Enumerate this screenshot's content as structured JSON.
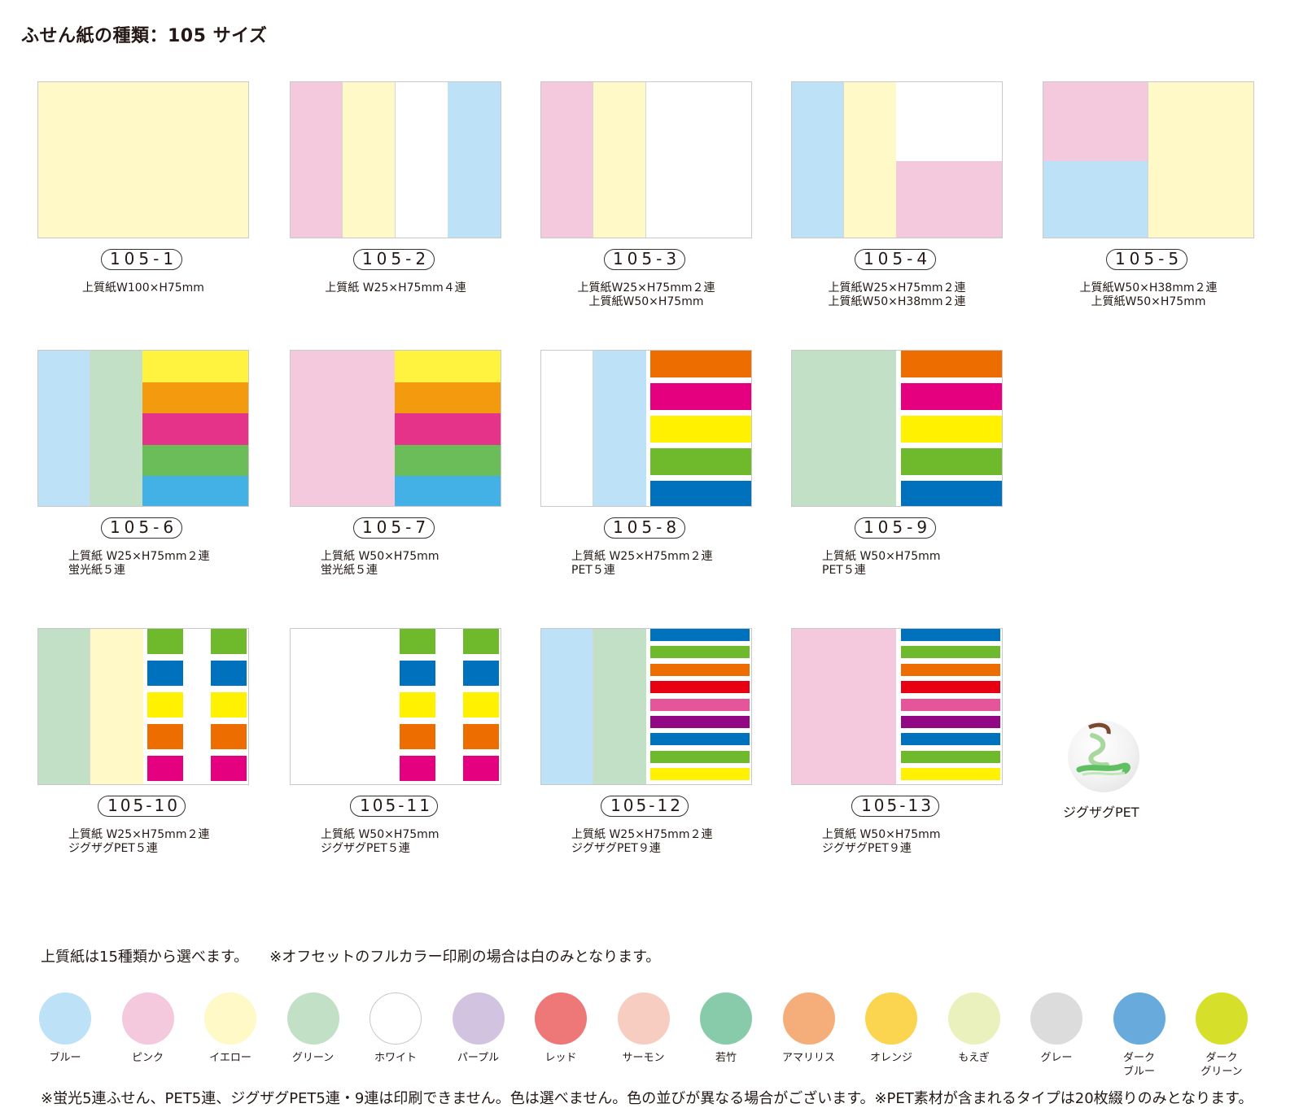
{
  "page": {
    "title": "ふせん紙の種類：105 サイズ"
  },
  "colors": {
    "blue": "#bde1f6",
    "pink": "#f4c9de",
    "yellow": "#fef9c6",
    "white": "#ffffff",
    "green": "#c1e0c5",
    "fl_yellow": "#fff33f",
    "fl_orange": "#f39a0f",
    "fl_pink": "#e6338a",
    "fl_green": "#6bbd59",
    "fl_blue": "#44b1e6",
    "pet_orange": "#ed6d00",
    "pet_magenta": "#e4007f",
    "pet_yellow": "#fff100",
    "pet_green": "#6fba2c",
    "pet_blue": "#0071bc",
    "pet_red": "#e60012",
    "pet_pink": "#e5559a",
    "pet_purple": "#920783"
  },
  "products": [
    {
      "code": "105-1",
      "lines": [
        "上質紙W100×H75mm"
      ]
    },
    {
      "code": "105-2",
      "lines": [
        "上質紙 W25×H75mm４連"
      ]
    },
    {
      "code": "105-3",
      "lines": [
        "上質紙W25×H75mm２連",
        "上質紙W50×H75mm"
      ]
    },
    {
      "code": "105-4",
      "lines": [
        "上質紙W25×H75mm２連",
        "上質紙W50×H38mm２連"
      ]
    },
    {
      "code": "105-5",
      "lines": [
        "上質紙W50×H38mm２連",
        "上質紙W50×H75mm"
      ]
    },
    {
      "code": "105-6",
      "lines": [
        "上質紙 W25×H75mm２連",
        "蛍光紙５連"
      ]
    },
    {
      "code": "105-7",
      "lines": [
        "上質紙 W50×H75mm",
        "蛍光紙５連"
      ]
    },
    {
      "code": "105-8",
      "lines": [
        "上質紙 W25×H75mm２連",
        "PET５連"
      ]
    },
    {
      "code": "105-9",
      "lines": [
        "上質紙 W50×H75mm",
        "PET５連"
      ]
    },
    {
      "code": "105-10",
      "lines": [
        "上質紙 W25×H75mm２連",
        "ジグザグPET５連"
      ]
    },
    {
      "code": "105-11",
      "lines": [
        "上質紙 W50×H75mm",
        "ジグザグPET５連"
      ]
    },
    {
      "code": "105-12",
      "lines": [
        "上質紙 W25×H75mm２連",
        "ジグザグPET９連"
      ]
    },
    {
      "code": "105-13",
      "lines": [
        "上質紙 W50×H75mm",
        "ジグザグPET９連"
      ]
    }
  ],
  "zigzag": {
    "label": "ジグザグPET",
    "icon": "zigzag-pet-photo-icon"
  },
  "paper_note": {
    "main": "上質紙は15種類から選べます。",
    "sub": "※オフセットのフルカラー印刷の場合は白のみとなります。"
  },
  "swatches": [
    {
      "lines": [
        "ブルー"
      ],
      "color": "#bde1f6"
    },
    {
      "lines": [
        "ピンク"
      ],
      "color": "#f4c9de"
    },
    {
      "lines": [
        "イエロー"
      ],
      "color": "#fef9c6"
    },
    {
      "lines": [
        "グリーン"
      ],
      "color": "#c1e0c5"
    },
    {
      "lines": [
        "ホワイト"
      ],
      "color": "#ffffff"
    },
    {
      "lines": [
        "パープル"
      ],
      "color": "#d2c3e0"
    },
    {
      "lines": [
        "レッド"
      ],
      "color": "#ee7778"
    },
    {
      "lines": [
        "サーモン"
      ],
      "color": "#f6cdc0"
    },
    {
      "lines": [
        "若竹"
      ],
      "color": "#88cbab"
    },
    {
      "lines": [
        "アマリリス"
      ],
      "color": "#f5ae79"
    },
    {
      "lines": [
        "オレンジ"
      ],
      "color": "#fbd550"
    },
    {
      "lines": [
        "もえぎ"
      ],
      "color": "#eaf1bd"
    },
    {
      "lines": [
        "グレー"
      ],
      "color": "#dcdcdc"
    },
    {
      "lines": [
        "ダーク",
        "ブルー"
      ],
      "color": "#67aadb"
    },
    {
      "lines": [
        "ダーク",
        "グリーン"
      ],
      "color": "#d6e02a"
    }
  ],
  "bottom_note": "※蛍光5連ふせん、PET5連、ジグザグPET5連・9連は印刷できません。色は選べません。色の並びが異なる場合がございます。※PET素材が含まれるタイプは20枚綴りのみとなります。"
}
